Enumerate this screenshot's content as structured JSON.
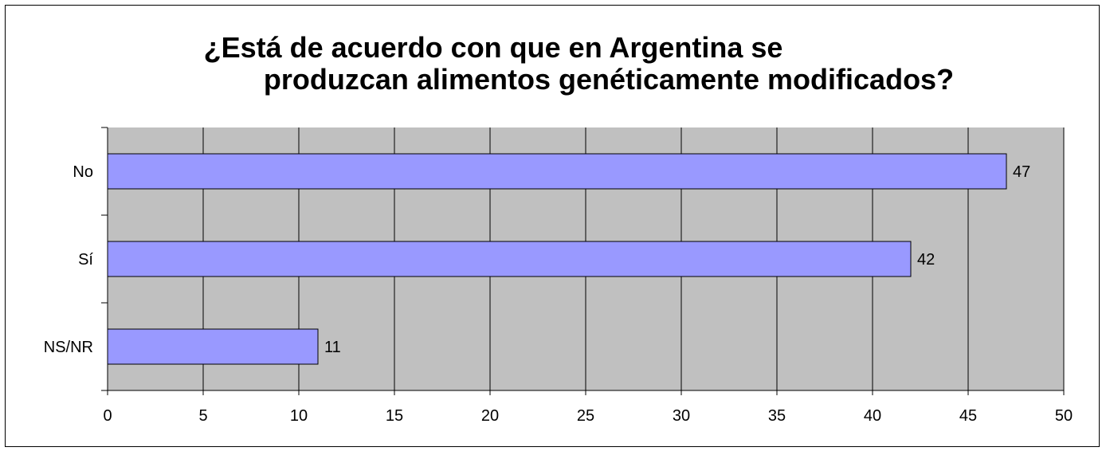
{
  "chart_data": {
    "type": "bar",
    "orientation": "horizontal",
    "title": "¿Está de acuerdo con que en Argentina se produzcan alimentos genéticamente modificados?",
    "title_lines": [
      "¿Está de acuerdo con que en Argentina se",
      "produzcan alimentos genéticamente modificados?"
    ],
    "categories": [
      "No",
      "Sí",
      "NS/NR"
    ],
    "values": [
      47,
      42,
      11
    ],
    "xlabel": "",
    "ylabel": "",
    "xlim": [
      0,
      50
    ],
    "x_ticks": [
      0,
      5,
      10,
      15,
      20,
      25,
      30,
      35,
      40,
      45,
      50
    ],
    "grid": true,
    "legend": "none",
    "colors": {
      "bar_fill": "#9999FF",
      "plot_background": "#C0C0C0",
      "grid": "#000000"
    }
  }
}
